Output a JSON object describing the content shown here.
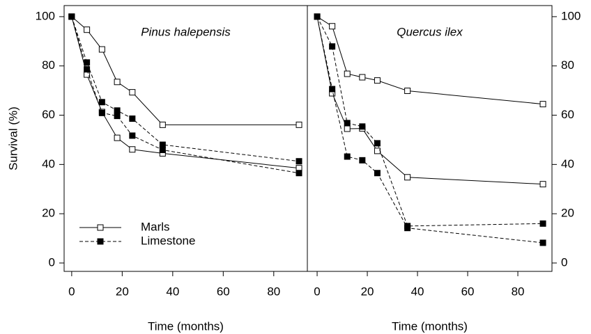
{
  "chart_data": [
    {
      "type": "line",
      "title": "Pinus halepensis",
      "xlabel": "Time (months)",
      "ylabel": "Survival (%)",
      "x": [
        0,
        6,
        12,
        18,
        24,
        36,
        90
      ],
      "xlim": [
        -3,
        93.3
      ],
      "xticks": [
        0,
        20,
        40,
        60,
        80
      ],
      "ylim": [
        -3.4,
        104.5
      ],
      "yticks": [
        0,
        20,
        40,
        60,
        80,
        100
      ],
      "yaxis_side": "left",
      "legend": "lower left",
      "series": [
        {
          "name": "Marls",
          "color": "#000000",
          "style": "solid",
          "marker": "open-square",
          "values": [
            100,
            94.7,
            86.7,
            73.5,
            69.3,
            56.1,
            56.1
          ]
        },
        {
          "name": "Marls",
          "color": "#000000",
          "style": "solid",
          "marker": "open-square",
          "values": [
            100,
            76.5,
            61.3,
            50.8,
            46.1,
            44.5,
            38.5
          ]
        },
        {
          "name": "Limestone",
          "color": "#000000",
          "style": "dashed",
          "marker": "filled-square",
          "values": [
            100,
            81.4,
            65.3,
            61.9,
            58.6,
            48.0,
            41.3
          ]
        },
        {
          "name": "Limestone",
          "color": "#000000",
          "style": "dashed",
          "marker": "filled-square",
          "values": [
            100,
            78.6,
            60.9,
            59.7,
            51.7,
            45.9,
            36.5
          ]
        }
      ]
    },
    {
      "type": "line",
      "title": "Quercus ilex",
      "xlabel": "Time (months)",
      "x": [
        0,
        6,
        12,
        18,
        24,
        36,
        90
      ],
      "xlim": [
        -3.9,
        93.6
      ],
      "xticks": [
        0,
        20,
        40,
        60,
        80
      ],
      "ylim": [
        -3.4,
        104.5
      ],
      "yticks": [
        0,
        20,
        40,
        60,
        80,
        100
      ],
      "yaxis_side": "right",
      "series": [
        {
          "name": "Marls",
          "color": "#000000",
          "style": "solid",
          "marker": "open-square",
          "values": [
            100,
            96.1,
            76.8,
            75.4,
            74.1,
            69.9,
            64.5
          ]
        },
        {
          "name": "Marls",
          "color": "#000000",
          "style": "solid",
          "marker": "open-square",
          "values": [
            100,
            68.9,
            54.5,
            54.6,
            45.5,
            34.8,
            32.0
          ]
        },
        {
          "name": "Limestone",
          "color": "#000000",
          "style": "dashed",
          "marker": "filled-square",
          "values": [
            100,
            87.9,
            56.8,
            55.4,
            48.6,
            15.0,
            16.0
          ]
        },
        {
          "name": "Limestone",
          "color": "#000000",
          "style": "dashed",
          "marker": "filled-square",
          "values": [
            100,
            70.6,
            43.2,
            41.7,
            36.5,
            14.2,
            8.2
          ]
        }
      ]
    }
  ]
}
